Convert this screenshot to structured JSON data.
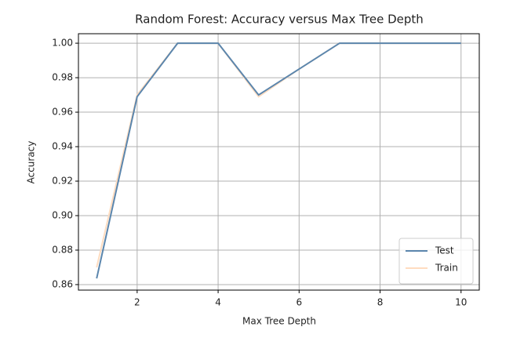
{
  "chart_data": {
    "type": "line",
    "title": "Random Forest: Accuracy versus Max Tree Depth",
    "xlabel": "Max Tree Depth",
    "ylabel": "Accuracy",
    "x": [
      1,
      2,
      3,
      4,
      5,
      6,
      7,
      8,
      9,
      10
    ],
    "series": [
      {
        "name": "Test",
        "color": "#5b86ad",
        "values": [
          0.8636,
          0.969,
          1.0,
          1.0,
          0.97,
          0.985,
          1.0,
          1.0,
          1.0,
          1.0
        ]
      },
      {
        "name": "Train",
        "color": "#ffdcc0",
        "values": [
          0.87,
          0.97,
          1.0,
          1.0,
          0.969,
          0.985,
          1.0,
          1.0,
          1.0,
          1.0
        ]
      }
    ],
    "xlim": [
      0.55,
      10.45
    ],
    "ylim": [
      0.8568,
      1.0055
    ],
    "xticks": [
      2,
      4,
      6,
      8,
      10
    ],
    "yticks": [
      {
        "value": 0.86,
        "label": "0.86"
      },
      {
        "value": 0.88,
        "label": "0.88"
      },
      {
        "value": 0.9,
        "label": "0.90"
      },
      {
        "value": 0.92,
        "label": "0.92"
      },
      {
        "value": 0.94,
        "label": "0.94"
      },
      {
        "value": 0.96,
        "label": "0.96"
      },
      {
        "value": 0.98,
        "label": "0.98"
      },
      {
        "value": 1.0,
        "label": "1.00"
      }
    ],
    "grid": true,
    "legend": "lower right"
  }
}
